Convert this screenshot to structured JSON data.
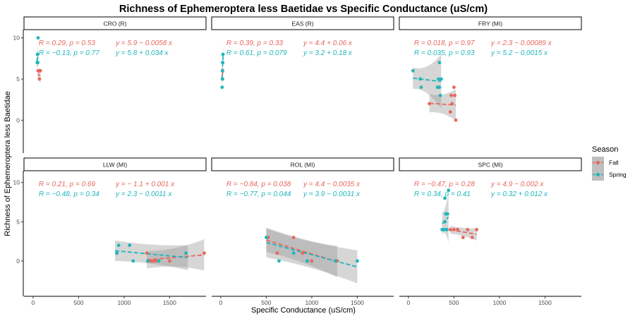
{
  "chart_data": {
    "type": "scatter",
    "title": "Richness of Ephemeroptera less Baetidae vs Specific Conductance (uS/cm)",
    "xlabel": "Specific Conductance (uS/cm)",
    "ylabel": "Richness of Ephemeroptera less Baetidae",
    "xlim": [
      -100,
      1900
    ],
    "xticks": [
      0,
      500,
      1000,
      1500
    ],
    "xtick_labels": [
      "0",
      "500",
      "1000",
      "1500"
    ],
    "yticks": [
      0,
      5,
      10
    ],
    "ytick_labels": [
      "0",
      "5",
      "10"
    ],
    "rows": [
      {
        "ylim": [
          -4,
          11
        ]
      },
      {
        "ylim": [
          -4.5,
          11.5
        ]
      }
    ],
    "legend": {
      "title": "Season",
      "position": "right",
      "entries": [
        {
          "name": "Fall",
          "color": "#E8675C"
        },
        {
          "name": "Spring",
          "color": "#1FB6BC"
        }
      ]
    },
    "grid": false,
    "panels": [
      {
        "name": "CRO (R)",
        "stats": {
          "fall": {
            "r": "R = 0.29, p = 0.53",
            "eq": "y = 5.9 − 0.0058 x"
          },
          "spring": {
            "r": "R = −0.13, p = 0.77",
            "eq": "y = 5.8 + 0.034 x"
          }
        },
        "series": [
          {
            "name": "Fall",
            "points": [
              [
                55,
                6
              ],
              [
                60,
                6
              ],
              [
                70,
                5
              ],
              [
                75,
                6
              ],
              [
                80,
                6
              ],
              [
                65,
                6
              ]
            ],
            "line": [
              [
                50,
                5.6
              ],
              [
                80,
                5.4
              ]
            ],
            "band_halfwidth": [
              0.6,
              1.0
            ]
          },
          {
            "name": "Spring",
            "points": [
              [
                45,
                7
              ],
              [
                50,
                7
              ],
              [
                55,
                10
              ],
              [
                48,
                8
              ],
              [
                52,
                7
              ]
            ],
            "line": [
              [
                40,
                7.2
              ],
              [
                58,
                7.8
              ]
            ],
            "band_halfwidth": [
              1.0,
              1.4
            ]
          }
        ]
      },
      {
        "name": "EAS (R)",
        "stats": {
          "fall": {
            "r": "R = 0.39, p = 0.33",
            "eq": "y = 4.4 + 0.06 x"
          },
          "spring": {
            "r": "R = 0.61, p = 0.079",
            "eq": "y = 3.2 + 0.18 x"
          }
        },
        "series": [
          {
            "name": "Fall",
            "points": [
              [
                18,
                6
              ],
              [
                20,
                5
              ],
              [
                22,
                7
              ],
              [
                19,
                6
              ]
            ],
            "line": [
              [
                15,
                5.3
              ],
              [
                25,
                6.0
              ]
            ],
            "band_halfwidth": [
              0.8,
              1.2
            ]
          },
          {
            "name": "Spring",
            "points": [
              [
                15,
                4
              ],
              [
                18,
                5
              ],
              [
                20,
                6
              ],
              [
                22,
                7
              ],
              [
                24,
                8
              ],
              [
                20,
                7
              ]
            ],
            "line": [
              [
                12,
                5.0
              ],
              [
                26,
                7.8
              ]
            ],
            "band_halfwidth": [
              1.2,
              1.5
            ]
          }
        ]
      },
      {
        "name": "FRY (MI)",
        "stats": {
          "fall": {
            "r": "R = 0.018, p = 0.97",
            "eq": "y = 2.3 − 0.00089 x"
          },
          "spring": {
            "r": "R = 0.035, p = 0.93",
            "eq": "y = 5.2 − 0.0015 x"
          }
        },
        "series": [
          {
            "name": "Fall",
            "points": [
              [
                230,
                2
              ],
              [
                460,
                1
              ],
              [
                470,
                3
              ],
              [
                480,
                2
              ],
              [
                500,
                4
              ],
              [
                510,
                3
              ],
              [
                520,
                0
              ]
            ],
            "line": [
              [
                230,
                2.05
              ],
              [
                520,
                1.84
              ]
            ],
            "band_halfwidth": [
              1.1,
              1.9
            ]
          },
          {
            "name": "Spring",
            "points": [
              [
                50,
                6
              ],
              [
                130,
                5
              ],
              [
                140,
                4
              ],
              [
                330,
                5
              ],
              [
                340,
                4
              ],
              [
                350,
                3
              ],
              [
                360,
                5
              ],
              [
                340,
                7
              ],
              [
                320,
                4
              ]
            ],
            "line": [
              [
                50,
                5.1
              ],
              [
                360,
                4.7
              ]
            ],
            "band_halfwidth": [
              1.3,
              3.3
            ]
          }
        ]
      },
      {
        "name": "LLW (MI)",
        "stats": {
          "fall": {
            "r": "R = 0.21, p = 0.69",
            "eq": "y = − 1.1 + 0.001 x"
          },
          "spring": {
            "r": "R = −0.48, p = 0.34",
            "eq": "y = 2.3 − 0.0011 x"
          }
        },
        "series": [
          {
            "name": "Fall",
            "points": [
              [
                1250,
                1
              ],
              [
                1270,
                0
              ],
              [
                1300,
                0
              ],
              [
                1320,
                0
              ],
              [
                1350,
                0
              ],
              [
                1500,
                0
              ],
              [
                1880,
                1
              ]
            ],
            "line": [
              [
                1250,
                0.15
              ],
              [
                1880,
                0.78
              ]
            ],
            "band_halfwidth": [
              1.1,
              2.0
            ]
          },
          {
            "name": "Spring",
            "points": [
              [
                920,
                1
              ],
              [
                940,
                2
              ],
              [
                1060,
                2
              ],
              [
                1100,
                0
              ],
              [
                1260,
                0
              ],
              [
                1380,
                0
              ],
              [
                1680,
                1
              ]
            ],
            "line": [
              [
                900,
                1.31
              ],
              [
                1700,
                0.43
              ]
            ],
            "band_halfwidth": [
              1.3,
              1.6
            ]
          }
        ]
      },
      {
        "name": "ROL (MI)",
        "stats": {
          "fall": {
            "r": "R = −0.84, p = 0.038",
            "eq": "y = 4.4 − 0.0035 x"
          },
          "spring": {
            "r": "R = −0.77, p = 0.044",
            "eq": "y = 3.9 − 0.0031 x"
          }
        },
        "series": [
          {
            "name": "Fall",
            "points": [
              [
                520,
                3
              ],
              [
                620,
                1
              ],
              [
                800,
                3
              ],
              [
                900,
                1
              ],
              [
                1000,
                0
              ],
              [
                1280,
                0
              ]
            ],
            "line": [
              [
                500,
                2.65
              ],
              [
                1280,
                -0.08
              ]
            ],
            "band_halfwidth": [
              1.5,
              2.0
            ]
          },
          {
            "name": "Spring",
            "points": [
              [
                500,
                3
              ],
              [
                640,
                0
              ],
              [
                800,
                1
              ],
              [
                950,
                0
              ],
              [
                1260,
                0
              ],
              [
                1500,
                0
              ]
            ],
            "line": [
              [
                500,
                2.35
              ],
              [
                1500,
                -0.75
              ]
            ],
            "band_halfwidth": [
              1.9,
              2.1
            ]
          }
        ]
      },
      {
        "name": "SPC (MI)",
        "stats": {
          "fall": {
            "r": "R = −0.47, p = 0.28",
            "eq": "y = 4.9 − 0.002 x"
          },
          "spring": {
            "r": "R = 0.34, p = 0.41",
            "eq": "y = 0.32 + 0.012 x"
          }
        },
        "series": [
          {
            "name": "Fall",
            "points": [
              [
                460,
                4
              ],
              [
                500,
                4
              ],
              [
                540,
                4
              ],
              [
                600,
                3
              ],
              [
                650,
                4
              ],
              [
                700,
                3
              ],
              [
                750,
                4
              ]
            ],
            "line": [
              [
                460,
                3.98
              ],
              [
                750,
                3.4
              ]
            ],
            "band_halfwidth": [
              0.5,
              0.8
            ]
          },
          {
            "name": "Spring",
            "points": [
              [
                370,
                4
              ],
              [
                380,
                4
              ],
              [
                390,
                4
              ],
              [
                400,
                5
              ],
              [
                410,
                6
              ],
              [
                420,
                4
              ],
              [
                430,
                6
              ],
              [
                440,
                9
              ],
              [
                400,
                8
              ],
              [
                420,
                4
              ]
            ],
            "line": [
              [
                370,
                4.76
              ],
              [
                440,
                5.6
              ]
            ],
            "band_halfwidth": [
              1.4,
              3.2
            ]
          }
        ]
      }
    ]
  }
}
